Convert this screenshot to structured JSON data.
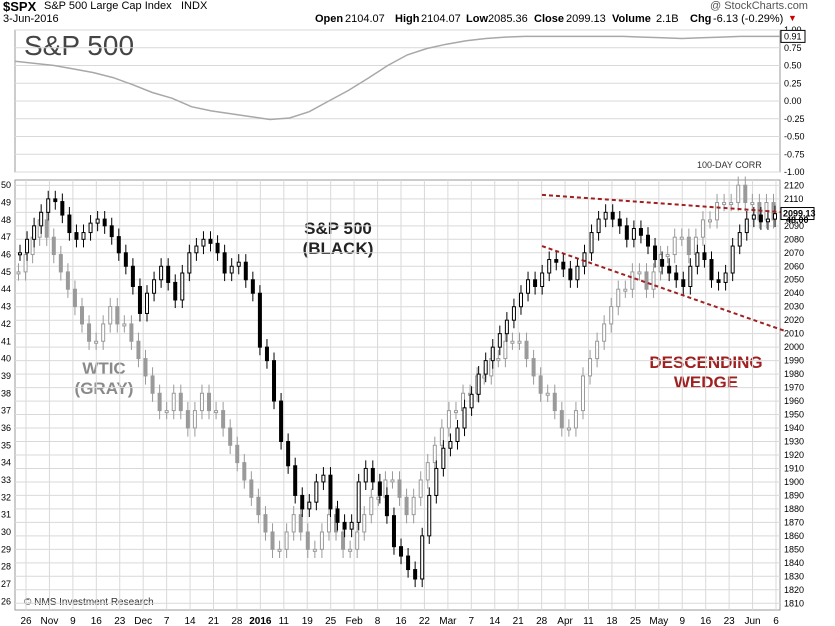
{
  "header": {
    "symbol": "$SPX",
    "name": "S&P 500 Large Cap Index",
    "exchange": "INDX",
    "date": "3-Jun-2016",
    "open_label": "Open",
    "open": "2104.07",
    "high_label": "High",
    "high": "2104.07",
    "low_label": "Low",
    "low": "2085.36",
    "close_label": "Close",
    "close": "2099.13",
    "volume_label": "Volume",
    "volume": "2.1B",
    "chg_label": "Chg",
    "chg": "-6.13 (-0.29%)",
    "copyright": "@ StockCharts.com"
  },
  "colors": {
    "spx": "#000000",
    "wtic": "#9a9a9a",
    "corr": "#a8a8a8",
    "wedge": "#a02020",
    "grid": "#d9d9d9"
  },
  "chart_data": [
    {
      "type": "line",
      "panel_title": "S&P 500",
      "indicator_label": "100-DAY CORR",
      "y_ticks": [
        "1.00",
        "0.75",
        "0.50",
        "0.25",
        "0.00",
        "-0.25",
        "-0.50",
        "-0.75",
        "-1.00"
      ],
      "ylim": [
        -1.0,
        1.0
      ],
      "last_value": "0.91",
      "series": [
        {
          "values": [
            0.56,
            0.53,
            0.5,
            0.45,
            0.4,
            0.33,
            0.23,
            0.12,
            0.04,
            -0.08,
            -0.14,
            -0.18,
            -0.22,
            -0.26,
            -0.24,
            -0.15,
            0.0,
            0.15,
            0.32,
            0.5,
            0.65,
            0.74,
            0.8,
            0.85,
            0.88,
            0.9,
            0.91,
            0.91,
            0.91,
            0.91,
            0.91,
            0.91,
            0.9,
            0.89,
            0.88,
            0.89,
            0.9,
            0.91,
            0.91,
            0.91
          ]
        }
      ]
    },
    {
      "type": "candlestick",
      "annotations": {
        "spx": [
          "S&P 500",
          "(BLACK)"
        ],
        "wtic": [
          "WTIC",
          "(GRAY)"
        ],
        "wedge": [
          "DESCENDING",
          "WEDGE"
        ],
        "credit": "© NMS Investment Research"
      },
      "x_labels": [
        "26",
        "Nov",
        "9",
        "16",
        "23",
        "Dec",
        "7",
        "14",
        "21",
        "28",
        "2016",
        "11",
        "19",
        "25",
        "Feb",
        "8",
        "16",
        "22",
        "Mar",
        "7",
        "14",
        "21",
        "28",
        "Apr",
        "11",
        "18",
        "25",
        "May",
        "9",
        "16",
        "23",
        "Jun",
        "6"
      ],
      "left_axis": {
        "label": "WTIC",
        "ticks": [
          "50",
          "49",
          "48",
          "47",
          "46",
          "45",
          "44",
          "43",
          "42",
          "41",
          "40",
          "39",
          "38",
          "37",
          "36",
          "35",
          "34",
          "33",
          "32",
          "31",
          "30",
          "29",
          "28",
          "27",
          "26"
        ],
        "ylim": [
          25.5,
          50.3
        ]
      },
      "right_axis": {
        "label": "SPX",
        "ticks": [
          "2120",
          "2110",
          "2100",
          "2090",
          "2080",
          "2070",
          "2060",
          "2050",
          "2040",
          "2030",
          "2020",
          "2010",
          "2000",
          "1990",
          "1980",
          "1970",
          "1960",
          "1950",
          "1940",
          "1930",
          "1920",
          "1910",
          "1900",
          "1890",
          "1880",
          "1870",
          "1860",
          "1850",
          "1840",
          "1830",
          "1820",
          "1810"
        ],
        "ylim": [
          1805,
          2124
        ],
        "last_value": "2099.13",
        "extra_value": "48.00"
      },
      "series": [
        {
          "name": "S&P 500",
          "values": [
            2070,
            2080,
            2090,
            2100,
            2110,
            2108,
            2098,
            2085,
            2080,
            2085,
            2092,
            2095,
            2090,
            2082,
            2070,
            2060,
            2045,
            2025,
            2040,
            2050,
            2060,
            2048,
            2035,
            2055,
            2070,
            2075,
            2080,
            2077,
            2070,
            2055,
            2060,
            2063,
            2050,
            2040,
            2000,
            1990,
            1960,
            1930,
            1912,
            1890,
            1880,
            1885,
            1900,
            1905,
            1880,
            1870,
            1865,
            1870,
            1900,
            1910,
            1900,
            1890,
            1875,
            1852,
            1845,
            1835,
            1828,
            1860,
            1890,
            1910,
            1925,
            1930,
            1940,
            1955,
            1965,
            1980,
            1990,
            2000,
            2010,
            2020,
            2030,
            2040,
            2050,
            2045,
            2055,
            2065,
            2063,
            2058,
            2050,
            2060,
            2070,
            2085,
            2095,
            2100,
            2095,
            2090,
            2080,
            2088,
            2083,
            2075,
            2065,
            2060,
            2055,
            2050,
            2045,
            2060,
            2070,
            2065,
            2050,
            2048,
            2055,
            2075,
            2085,
            2095,
            2098,
            2093,
            2095,
            2099
          ]
        },
        {
          "name": "WTIC",
          "values": [
            45,
            46,
            47,
            48,
            47,
            46,
            45,
            44,
            43,
            42,
            41,
            41,
            42,
            43,
            42,
            42,
            41,
            40,
            39,
            38,
            37,
            37,
            38,
            37,
            36,
            37,
            38,
            37,
            37,
            36,
            35,
            34,
            33,
            32,
            31,
            30,
            29,
            29,
            30,
            31,
            30,
            29,
            29,
            30,
            31,
            30,
            29,
            29,
            30,
            31,
            32,
            32,
            33,
            33,
            32,
            31,
            32,
            33,
            34,
            35,
            36,
            37,
            37,
            38,
            38,
            39,
            39,
            40,
            40,
            41,
            41,
            41,
            40,
            39,
            38,
            38,
            37,
            36,
            36,
            37,
            39,
            40,
            41,
            42,
            43,
            44,
            44,
            45,
            45,
            44,
            45,
            46,
            46,
            47,
            47,
            46,
            47,
            48,
            48,
            49,
            49,
            49,
            50,
            49,
            49,
            48,
            49,
            48
          ]
        }
      ],
      "wedge_lines": [
        {
          "from": [
            0,
            2113
          ],
          "to": [
            1,
            2100
          ]
        },
        {
          "from": [
            0,
            2075
          ],
          "to": [
            1,
            2012
          ]
        }
      ]
    }
  ]
}
